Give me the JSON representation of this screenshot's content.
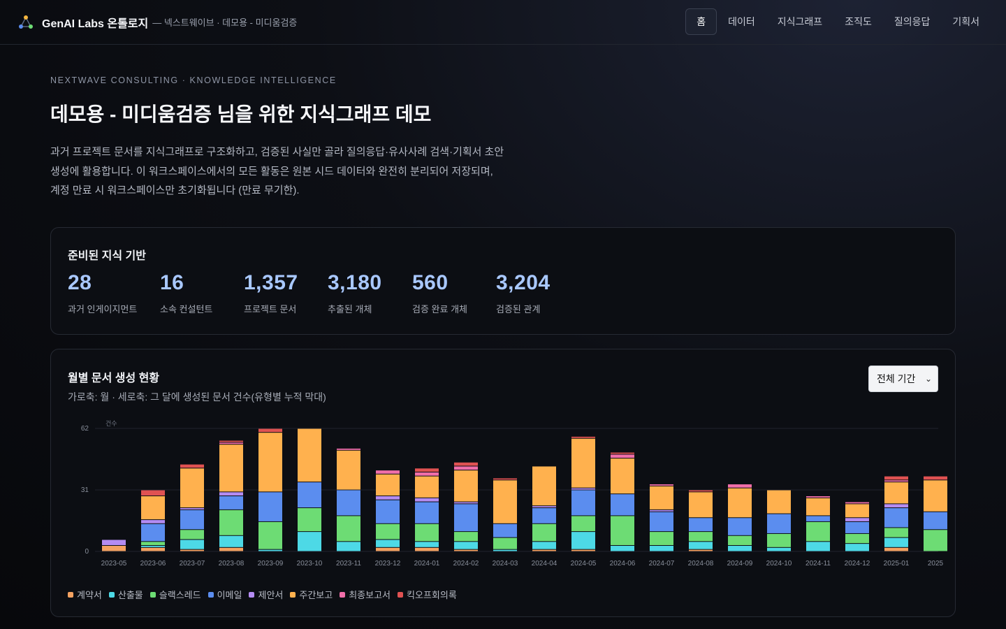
{
  "header": {
    "brand_title": "GenAI Labs 온톨로지",
    "brand_sub": "— 넥스트웨이브 · 데모용 - 미디움검증",
    "logo_icon": "network-nodes-icon",
    "nav": [
      "홈",
      "데이터",
      "지식그래프",
      "조직도",
      "질의응답",
      "기획서"
    ],
    "active_nav": "홈"
  },
  "hero": {
    "eyebrow": "NEXTWAVE CONSULTING · KNOWLEDGE INTELLIGENCE",
    "title": "데모용 - 미디움검증 님을 위한 지식그래프 데모",
    "description": "과거 프로젝트 문서를 지식그래프로 구조화하고, 검증된 사실만 골라 질의응답·유사사례 검색·기획서 초안 생성에 활용합니다. 이 워크스페이스에서의 모든 활동은 원본 시드 데이터와 완전히 분리되어 저장되며, 계정 만료 시 워크스페이스만 초기화됩니다 (만료 무기한)."
  },
  "knowledge_base": {
    "title": "준비된 지식 기반",
    "stats": [
      {
        "value": "28",
        "label": "과거 인게이지먼트"
      },
      {
        "value": "16",
        "label": "소속 컨설턴트"
      },
      {
        "value": "1,357",
        "label": "프로젝트 문서"
      },
      {
        "value": "3,180",
        "label": "추출된 개체"
      },
      {
        "value": "560",
        "label": "검증 완료 개체"
      },
      {
        "value": "3,204",
        "label": "검증된 관계"
      }
    ]
  },
  "chart_card": {
    "title": "월별 문서 생성 현황",
    "subtitle": "가로축: 월 · 세로축: 그 달에 생성된 문서 건수(유형별 누적 막대)",
    "period_select": "전체 기간"
  },
  "colors": {
    "accent": "#a9c8ff",
    "grid": "#1f232c"
  },
  "chart_data": {
    "type": "bar",
    "stacked": true,
    "ylabel": "건수",
    "ylim": [
      0,
      62
    ],
    "yticks": [
      0,
      31,
      62
    ],
    "grid": true,
    "legend_position": "bottom-left",
    "categories": [
      "2023-05",
      "2023-06",
      "2023-07",
      "2023-08",
      "2023-09",
      "2023-10",
      "2023-11",
      "2023-12",
      "2024-01",
      "2024-02",
      "2024-03",
      "2024-04",
      "2024-05",
      "2024-06",
      "2024-07",
      "2024-08",
      "2024-09",
      "2024-10",
      "2024-11",
      "2024-12",
      "2025-01",
      "2025"
    ],
    "series": [
      {
        "name": "계약서",
        "color": "#f4a261",
        "values": [
          3,
          2,
          1,
          2,
          0,
          0,
          0,
          2,
          2,
          1,
          0,
          1,
          1,
          0,
          0,
          1,
          0,
          0,
          0,
          0,
          2,
          0
        ]
      },
      {
        "name": "산출물",
        "color": "#4dd9e6",
        "values": [
          0,
          1,
          5,
          6,
          1,
          10,
          5,
          4,
          3,
          4,
          1,
          4,
          9,
          3,
          3,
          4,
          3,
          2,
          5,
          4,
          5,
          0
        ]
      },
      {
        "name": "슬랙스레드",
        "color": "#6ddc74",
        "values": [
          0,
          2,
          5,
          13,
          14,
          12,
          13,
          8,
          9,
          5,
          6,
          9,
          8,
          15,
          7,
          5,
          5,
          7,
          10,
          5,
          5,
          11
        ]
      },
      {
        "name": "이메일",
        "color": "#5b8def",
        "values": [
          0,
          9,
          10,
          7,
          15,
          13,
          13,
          12,
          11,
          14,
          7,
          8,
          13,
          11,
          10,
          7,
          9,
          10,
          3,
          6,
          10,
          9
        ]
      },
      {
        "name": "제안서",
        "color": "#b48cf2",
        "values": [
          3,
          2,
          1,
          2,
          0,
          0,
          0,
          2,
          2,
          1,
          0,
          1,
          1,
          0,
          1,
          0,
          0,
          0,
          0,
          2,
          2,
          0
        ]
      },
      {
        "name": "주간보고",
        "color": "#ffb14e",
        "values": [
          0,
          12,
          20,
          24,
          30,
          27,
          20,
          11,
          11,
          16,
          22,
          20,
          25,
          18,
          12,
          13,
          15,
          12,
          9,
          7,
          11,
          16
        ]
      },
      {
        "name": "최종보고서",
        "color": "#f06ea9",
        "values": [
          0,
          0,
          0,
          1,
          0,
          0,
          1,
          2,
          2,
          2,
          0,
          0,
          0,
          2,
          1,
          0,
          2,
          0,
          1,
          1,
          1,
          0
        ]
      },
      {
        "name": "킥오프회의록",
        "color": "#e05252",
        "values": [
          0,
          3,
          2,
          1,
          2,
          0,
          0,
          0,
          2,
          2,
          1,
          0,
          1,
          1,
          0,
          1,
          0,
          0,
          0,
          0,
          2,
          2
        ]
      }
    ]
  }
}
